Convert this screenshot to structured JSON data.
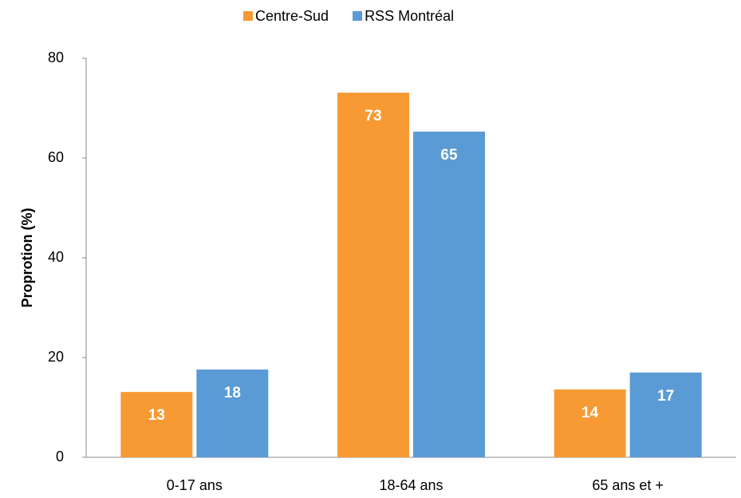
{
  "chart_data": {
    "type": "bar",
    "categories": [
      "0-17 ans",
      "18-64 ans",
      "65 ans et +"
    ],
    "series": [
      {
        "name": "Centre-Sud",
        "color": "#f79a34",
        "values": [
          13.1,
          73.1,
          13.6
        ],
        "value_labels": [
          "13",
          "73",
          "14"
        ]
      },
      {
        "name": "RSS Montréal",
        "color": "#5b9bd5",
        "values": [
          17.6,
          65.3,
          17.0
        ],
        "value_labels": [
          "18",
          "65",
          "17"
        ]
      }
    ],
    "ylabel": "Proprotion (%)",
    "ylim": [
      0,
      80
    ],
    "yticks": [
      0,
      20,
      40,
      60,
      80
    ],
    "grid": false,
    "legend": "top"
  }
}
